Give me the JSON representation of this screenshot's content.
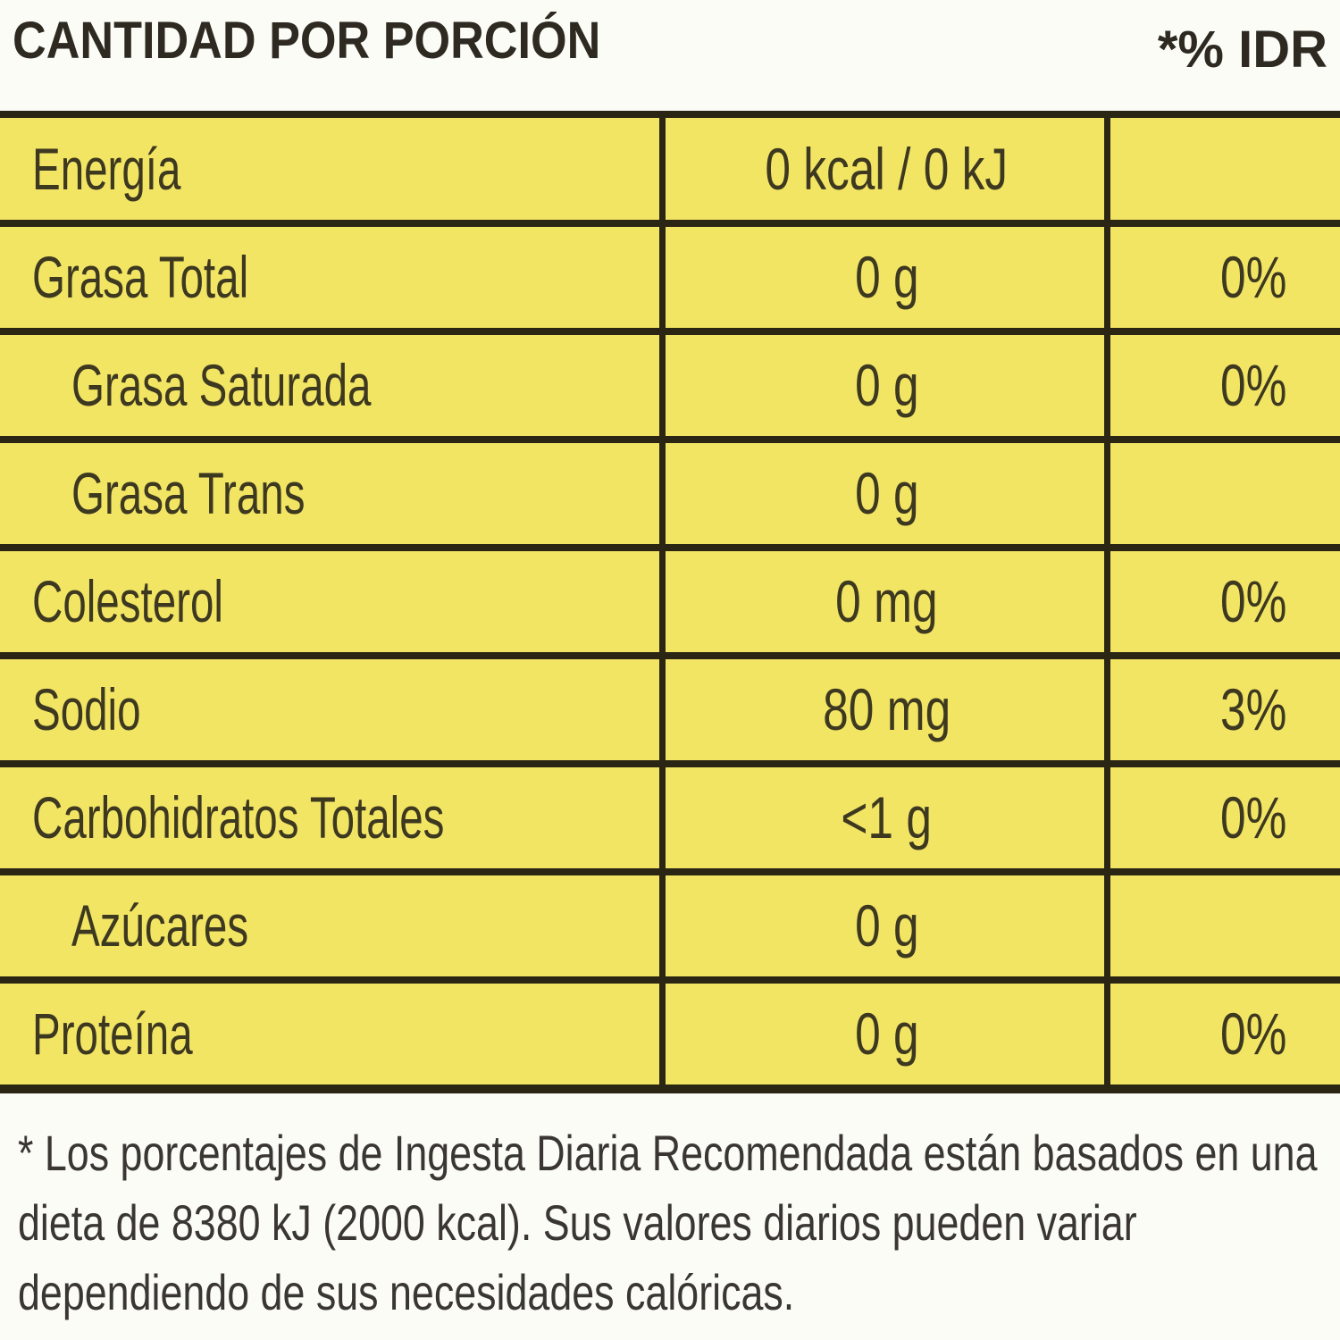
{
  "header": {
    "title": "CANTIDAD POR PORCIÓN",
    "idr": "*% IDR"
  },
  "rows": [
    {
      "label": "Energía",
      "value": "0 kcal / 0 kJ",
      "pct": ""
    },
    {
      "label": "Grasa Total",
      "value": "0 g",
      "pct": "0%"
    },
    {
      "label": "Grasa Saturada",
      "value": "0 g",
      "pct": "0%"
    },
    {
      "label": "Grasa Trans",
      "value": "0 g",
      "pct": ""
    },
    {
      "label": "Colesterol",
      "value": "0 mg",
      "pct": "0%"
    },
    {
      "label": "Sodio",
      "value": "80 mg",
      "pct": "3%"
    },
    {
      "label": "Carbohidratos Totales",
      "value": "<1 g",
      "pct": "0%"
    },
    {
      "label": "Azúcares",
      "value": "0 g",
      "pct": ""
    },
    {
      "label": "Proteína",
      "value": "0 g",
      "pct": "0%"
    }
  ],
  "footnote": "* Los porcentajes de Ingesta Diaria Recomendada están basados en una dieta de 8380 kJ (2000 kcal). Sus valores diarios pueden variar dependiendo de sus necesidades calóricas.",
  "colors": {
    "table_bg": "#f3e564",
    "lines": "#2b2614",
    "text": "#3d3820"
  }
}
